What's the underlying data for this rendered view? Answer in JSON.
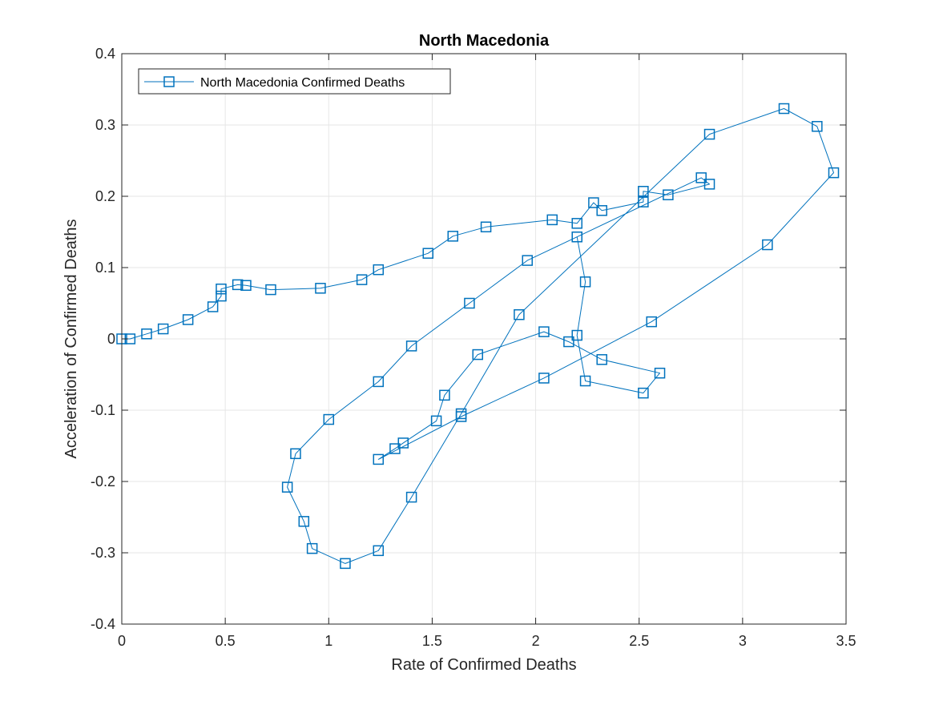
{
  "chart_data": {
    "type": "line",
    "title": "North Macedonia",
    "xlabel": "Rate of Confirmed Deaths",
    "ylabel": "Acceleration of Confirmed Deaths",
    "xlim": [
      0,
      3.5
    ],
    "ylim": [
      -0.4,
      0.4
    ],
    "xticks": [
      0,
      0.5,
      1,
      1.5,
      2,
      2.5,
      3,
      3.5
    ],
    "xtick_labels": [
      "0",
      "0.5",
      "1",
      "1.5",
      "2",
      "2.5",
      "3",
      "3.5"
    ],
    "yticks": [
      -0.4,
      -0.3,
      -0.2,
      -0.1,
      0,
      0.1,
      0.2,
      0.3,
      0.4
    ],
    "ytick_labels": [
      "-0.4",
      "-0.3",
      "-0.2",
      "-0.1",
      "0",
      "0.1",
      "0.2",
      "0.3",
      "0.4"
    ],
    "grid": true,
    "legend_position": "top-left",
    "series": [
      {
        "name": "North Macedonia Confirmed Deaths",
        "color": "#0072BD",
        "marker": "square",
        "x": [
          0,
          0.04,
          0.12,
          0.2,
          0.32,
          0.44,
          0.48,
          0.48,
          0.56,
          0.6,
          0.72,
          0.96,
          1.16,
          1.24,
          1.48,
          1.6,
          1.76,
          2.08,
          2.2,
          2.28,
          2.32,
          2.52,
          2.52,
          2.64,
          2.84,
          2.8,
          2.2,
          2.24,
          2.2,
          2.24,
          2.52,
          2.6,
          2.32,
          2.16,
          2.04,
          1.72,
          1.56,
          1.52,
          1.36,
          1.32,
          1.24,
          1.64,
          2.04,
          2.56,
          3.12,
          3.44,
          3.36,
          3.2,
          2.84,
          1.92,
          1.64,
          1.4,
          1.24,
          1.08,
          0.92,
          0.88,
          0.8,
          0.84,
          1.0,
          1.24,
          1.4,
          1.68,
          1.96,
          2.2
        ],
        "y": [
          0,
          0,
          0.007,
          0.014,
          0.027,
          0.045,
          0.06,
          0.07,
          0.076,
          0.075,
          0.069,
          0.071,
          0.083,
          0.097,
          0.12,
          0.144,
          0.157,
          0.167,
          0.162,
          0.191,
          0.18,
          0.192,
          0.207,
          0.202,
          0.217,
          0.226,
          0.143,
          0.08,
          0.005,
          -0.059,
          -0.076,
          -0.048,
          -0.029,
          -0.004,
          0.01,
          -0.022,
          -0.079,
          -0.115,
          -0.146,
          -0.154,
          -0.169,
          -0.109,
          -0.055,
          0.024,
          0.132,
          0.233,
          0.298,
          0.323,
          0.287,
          0.034,
          -0.105,
          -0.222,
          -0.297,
          -0.315,
          -0.294,
          -0.256,
          -0.208,
          -0.161,
          -0.113,
          -0.06,
          -0.01,
          0.05,
          0.11,
          0.143
        ]
      }
    ]
  }
}
